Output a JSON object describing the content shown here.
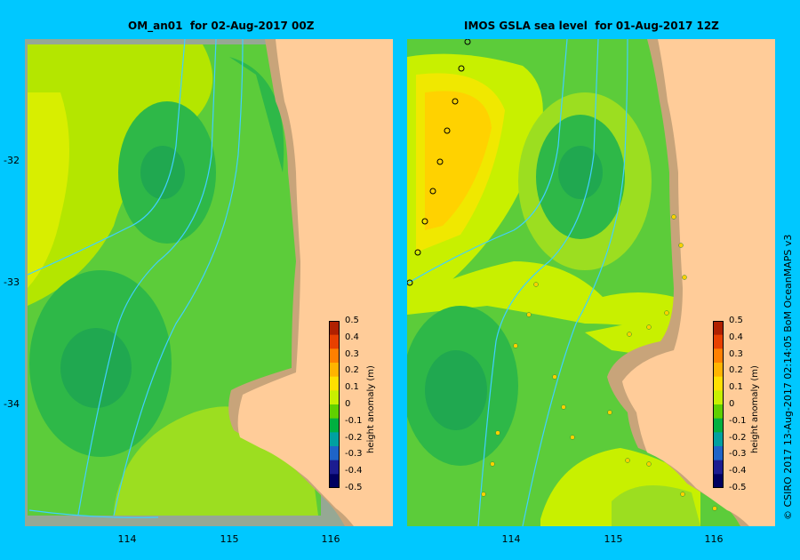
{
  "left_panel": {
    "title": "OM_an01  for 02-Aug-2017 00Z",
    "colorbar_title": "height anomaly (m)"
  },
  "right_panel": {
    "title": "IMOS GSLA sea level  for 01-Aug-2017 12Z",
    "colorbar_title": "height anomaly (m)"
  },
  "y_ticks": [
    "-32",
    "-33",
    "-34"
  ],
  "x_ticks": [
    "114",
    "115",
    "116"
  ],
  "colorbar_ticks": [
    "0.5",
    "0.4",
    "0.3",
    "0.2",
    "0.1",
    "0",
    "-0.1",
    "-0.2",
    "-0.3",
    "-0.4",
    "-0.5"
  ],
  "colorbar_colors": [
    "#b02000",
    "#e84000",
    "#ff8000",
    "#ffb400",
    "#ffe000",
    "#c8f000",
    "#60d000",
    "#00b040",
    "#00a0a0",
    "#1e64c8",
    "#1c1c90",
    "#000060"
  ],
  "credit": "© CSIRO 2017   13-Aug-2017 02:14:05 BoM OceanMAPS v3",
  "colors": {
    "background": "#00c8ff",
    "land": "#ffcc99",
    "shelf": "#c8a47a",
    "contour": "#40d0ff"
  }
}
